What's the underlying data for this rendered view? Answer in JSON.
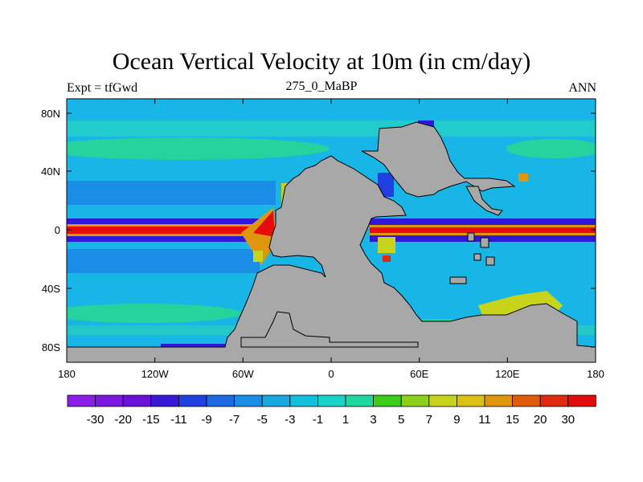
{
  "title": "Ocean Vertical Velocity at 10m (in cm/day)",
  "subtitle_left": "Expt = tfGwd",
  "subtitle_center": "275_0_MaBP",
  "subtitle_right": "ANN",
  "lon_labels": [
    "180",
    "120W",
    "60W",
    "0",
    "60E",
    "120E",
    "180"
  ],
  "lat_labels": [
    "80N",
    "40N",
    "0",
    "40S",
    "80S"
  ],
  "lat_values": [
    80,
    40,
    0,
    -40,
    -80
  ],
  "colorbar": {
    "labels": [
      "-30",
      "-20",
      "-15",
      "-11",
      "-9",
      "-7",
      "-5",
      "-3",
      "-1",
      "1",
      "3",
      "5",
      "7",
      "9",
      "11",
      "15",
      "20",
      "30"
    ],
    "colors": [
      "#8a1ee6",
      "#7a16e0",
      "#6a10d8",
      "#3a18d8",
      "#1e40e0",
      "#1e68e0",
      "#1a8ee6",
      "#18a8e0",
      "#10c0dc",
      "#18d2c8",
      "#1ed8a0",
      "#3ccc1a",
      "#8cd01c",
      "#c8d41c",
      "#dcc014",
      "#e0960c",
      "#e05a0c",
      "#e02a10",
      "#e00c0c"
    ]
  },
  "colors": {
    "land": "#a8a8a8",
    "ocean_base": "#18b6e6",
    "upwelling": "#e60c0c",
    "downwelling": "#3018d8",
    "band_green": "#24d49c"
  }
}
